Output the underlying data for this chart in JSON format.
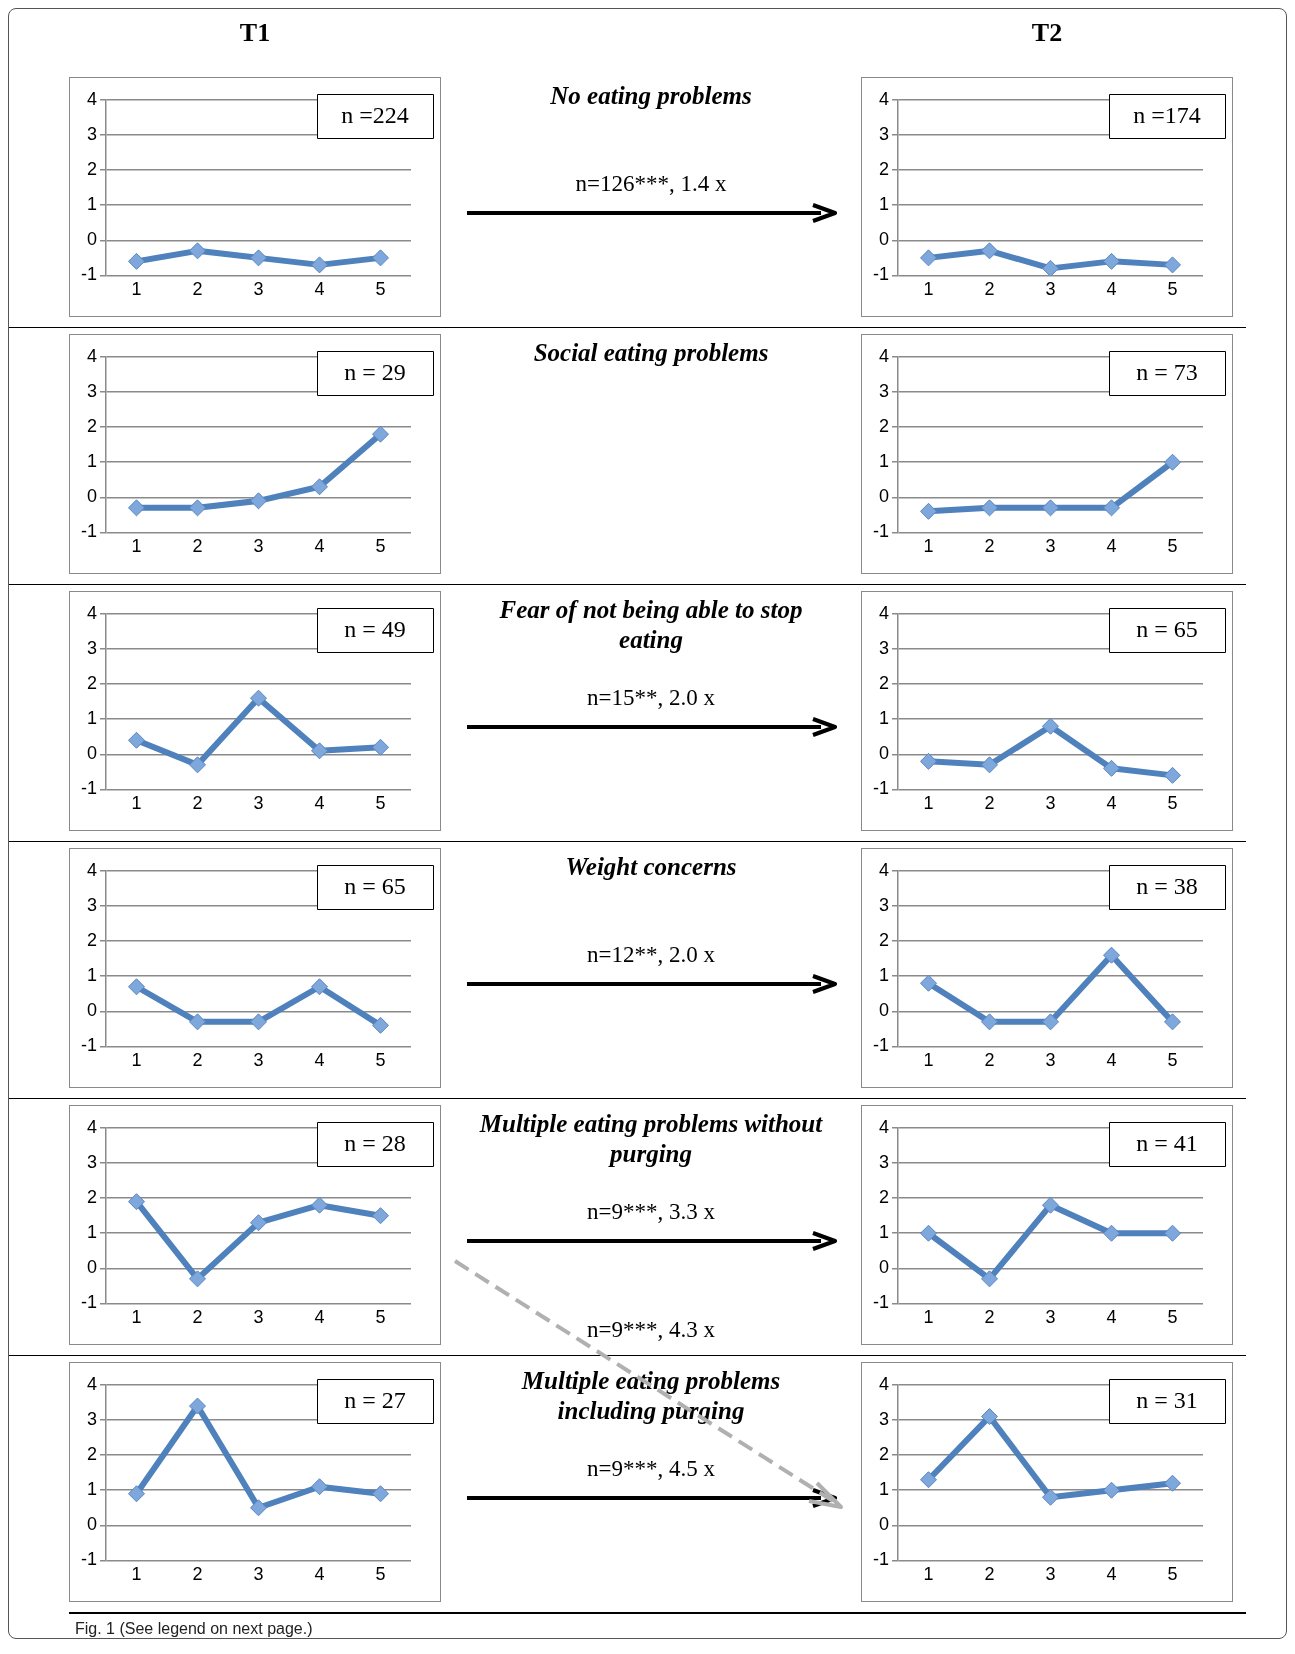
{
  "chart_data": [
    {
      "type": "line",
      "title": "T1",
      "categories": [
        "1",
        "2",
        "3",
        "4",
        "5"
      ],
      "series": [
        {
          "color": "#4f81bd",
          "values": [
            -0.6,
            -0.3,
            -0.5,
            -0.7,
            -0.5
          ]
        }
      ],
      "ylim": [
        -1,
        4
      ],
      "yticks": [
        -1,
        0,
        1,
        2,
        3,
        4
      ],
      "grid": "y",
      "marker": "diamond",
      "annotations": [
        "n =224"
      ]
    },
    {
      "type": "other",
      "title": "No eating problems",
      "annotations": [
        "n=126***, 1.4 x"
      ]
    },
    {
      "type": "line",
      "title": "T2",
      "categories": [
        "1",
        "2",
        "3",
        "4",
        "5"
      ],
      "series": [
        {
          "color": "#4f81bd",
          "values": [
            -0.5,
            -0.3,
            -0.8,
            -0.6,
            -0.7
          ]
        }
      ],
      "ylim": [
        -1,
        4
      ],
      "yticks": [
        -1,
        0,
        1,
        2,
        3,
        4
      ],
      "grid": "y",
      "marker": "diamond",
      "annotations": [
        "n =174"
      ]
    },
    {
      "type": "line",
      "categories": [
        "1",
        "2",
        "3",
        "4",
        "5"
      ],
      "series": [
        {
          "color": "#4f81bd",
          "values": [
            -0.3,
            -0.3,
            -0.1,
            0.3,
            1.8
          ]
        }
      ],
      "ylim": [
        -1,
        4
      ],
      "yticks": [
        -1,
        0,
        1,
        2,
        3,
        4
      ],
      "grid": "y",
      "marker": "diamond",
      "annotations": [
        "n = 29"
      ]
    },
    {
      "type": "other",
      "title": "Social eating problems"
    },
    {
      "type": "line",
      "categories": [
        "1",
        "2",
        "3",
        "4",
        "5"
      ],
      "series": [
        {
          "color": "#4f81bd",
          "values": [
            -0.4,
            -0.3,
            -0.3,
            -0.3,
            1.0
          ]
        }
      ],
      "ylim": [
        -1,
        4
      ],
      "yticks": [
        -1,
        0,
        1,
        2,
        3,
        4
      ],
      "grid": "y",
      "marker": "diamond",
      "annotations": [
        "n = 73"
      ]
    },
    {
      "type": "line",
      "categories": [
        "1",
        "2",
        "3",
        "4",
        "5"
      ],
      "series": [
        {
          "color": "#4f81bd",
          "values": [
            0.4,
            -0.3,
            1.6,
            0.1,
            0.2
          ]
        }
      ],
      "ylim": [
        -1,
        4
      ],
      "yticks": [
        -1,
        0,
        1,
        2,
        3,
        4
      ],
      "grid": "y",
      "marker": "diamond",
      "annotations": [
        "n = 49"
      ]
    },
    {
      "type": "other",
      "title": "Fear of not being able to stop eating",
      "annotations": [
        "n=15**, 2.0 x"
      ]
    },
    {
      "type": "line",
      "categories": [
        "1",
        "2",
        "3",
        "4",
        "5"
      ],
      "series": [
        {
          "color": "#4f81bd",
          "values": [
            -0.2,
            -0.3,
            0.8,
            -0.4,
            -0.6
          ]
        }
      ],
      "ylim": [
        -1,
        4
      ],
      "yticks": [
        -1,
        0,
        1,
        2,
        3,
        4
      ],
      "grid": "y",
      "marker": "diamond",
      "annotations": [
        "n = 65"
      ]
    },
    {
      "type": "line",
      "categories": [
        "1",
        "2",
        "3",
        "4",
        "5"
      ],
      "series": [
        {
          "color": "#4f81bd",
          "values": [
            0.7,
            -0.3,
            -0.3,
            0.7,
            -0.4
          ]
        }
      ],
      "ylim": [
        -1,
        4
      ],
      "yticks": [
        -1,
        0,
        1,
        2,
        3,
        4
      ],
      "grid": "y",
      "marker": "diamond",
      "annotations": [
        "n = 65"
      ]
    },
    {
      "type": "other",
      "title": "Weight concerns",
      "annotations": [
        "n=12**, 2.0 x"
      ]
    },
    {
      "type": "line",
      "categories": [
        "1",
        "2",
        "3",
        "4",
        "5"
      ],
      "series": [
        {
          "color": "#4f81bd",
          "values": [
            0.8,
            -0.3,
            -0.3,
            1.6,
            -0.3
          ]
        }
      ],
      "ylim": [
        -1,
        4
      ],
      "yticks": [
        -1,
        0,
        1,
        2,
        3,
        4
      ],
      "grid": "y",
      "marker": "diamond",
      "annotations": [
        "n = 38"
      ]
    },
    {
      "type": "line",
      "categories": [
        "1",
        "2",
        "3",
        "4",
        "5"
      ],
      "series": [
        {
          "color": "#4f81bd",
          "values": [
            1.9,
            -0.3,
            1.3,
            1.8,
            1.5
          ]
        }
      ],
      "ylim": [
        -1,
        4
      ],
      "yticks": [
        -1,
        0,
        1,
        2,
        3,
        4
      ],
      "grid": "y",
      "marker": "diamond",
      "annotations": [
        "n = 28"
      ]
    },
    {
      "type": "other",
      "title": "Multiple eating problems without purging",
      "annotations": [
        "n=9***, 3.3 x",
        "n=9***, 4.3 x"
      ]
    },
    {
      "type": "line",
      "categories": [
        "1",
        "2",
        "3",
        "4",
        "5"
      ],
      "series": [
        {
          "color": "#4f81bd",
          "values": [
            1.0,
            -0.3,
            1.8,
            1.0,
            1.0
          ]
        }
      ],
      "ylim": [
        -1,
        4
      ],
      "yticks": [
        -1,
        0,
        1,
        2,
        3,
        4
      ],
      "grid": "y",
      "marker": "diamond",
      "annotations": [
        "n = 41"
      ]
    },
    {
      "type": "line",
      "categories": [
        "1",
        "2",
        "3",
        "4",
        "5"
      ],
      "series": [
        {
          "color": "#4f81bd",
          "values": [
            0.9,
            3.4,
            0.5,
            1.1,
            0.9
          ]
        }
      ],
      "ylim": [
        -1,
        4
      ],
      "yticks": [
        -1,
        0,
        1,
        2,
        3,
        4
      ],
      "grid": "y",
      "marker": "diamond",
      "annotations": [
        "n = 27"
      ]
    },
    {
      "type": "other",
      "title": "Multiple eating problems including purging",
      "annotations": [
        "n=9***, 4.5 x"
      ]
    },
    {
      "type": "line",
      "categories": [
        "1",
        "2",
        "3",
        "4",
        "5"
      ],
      "series": [
        {
          "color": "#4f81bd",
          "values": [
            1.3,
            3.1,
            0.8,
            1.0,
            1.2
          ]
        }
      ],
      "ylim": [
        -1,
        4
      ],
      "yticks": [
        -1,
        0,
        1,
        2,
        3,
        4
      ],
      "grid": "y",
      "marker": "diamond",
      "annotations": [
        "n = 31"
      ]
    },
    {
      "type": "other",
      "annotations": [
        "Fig. 1 (See legend on next page.)"
      ]
    }
  ]
}
